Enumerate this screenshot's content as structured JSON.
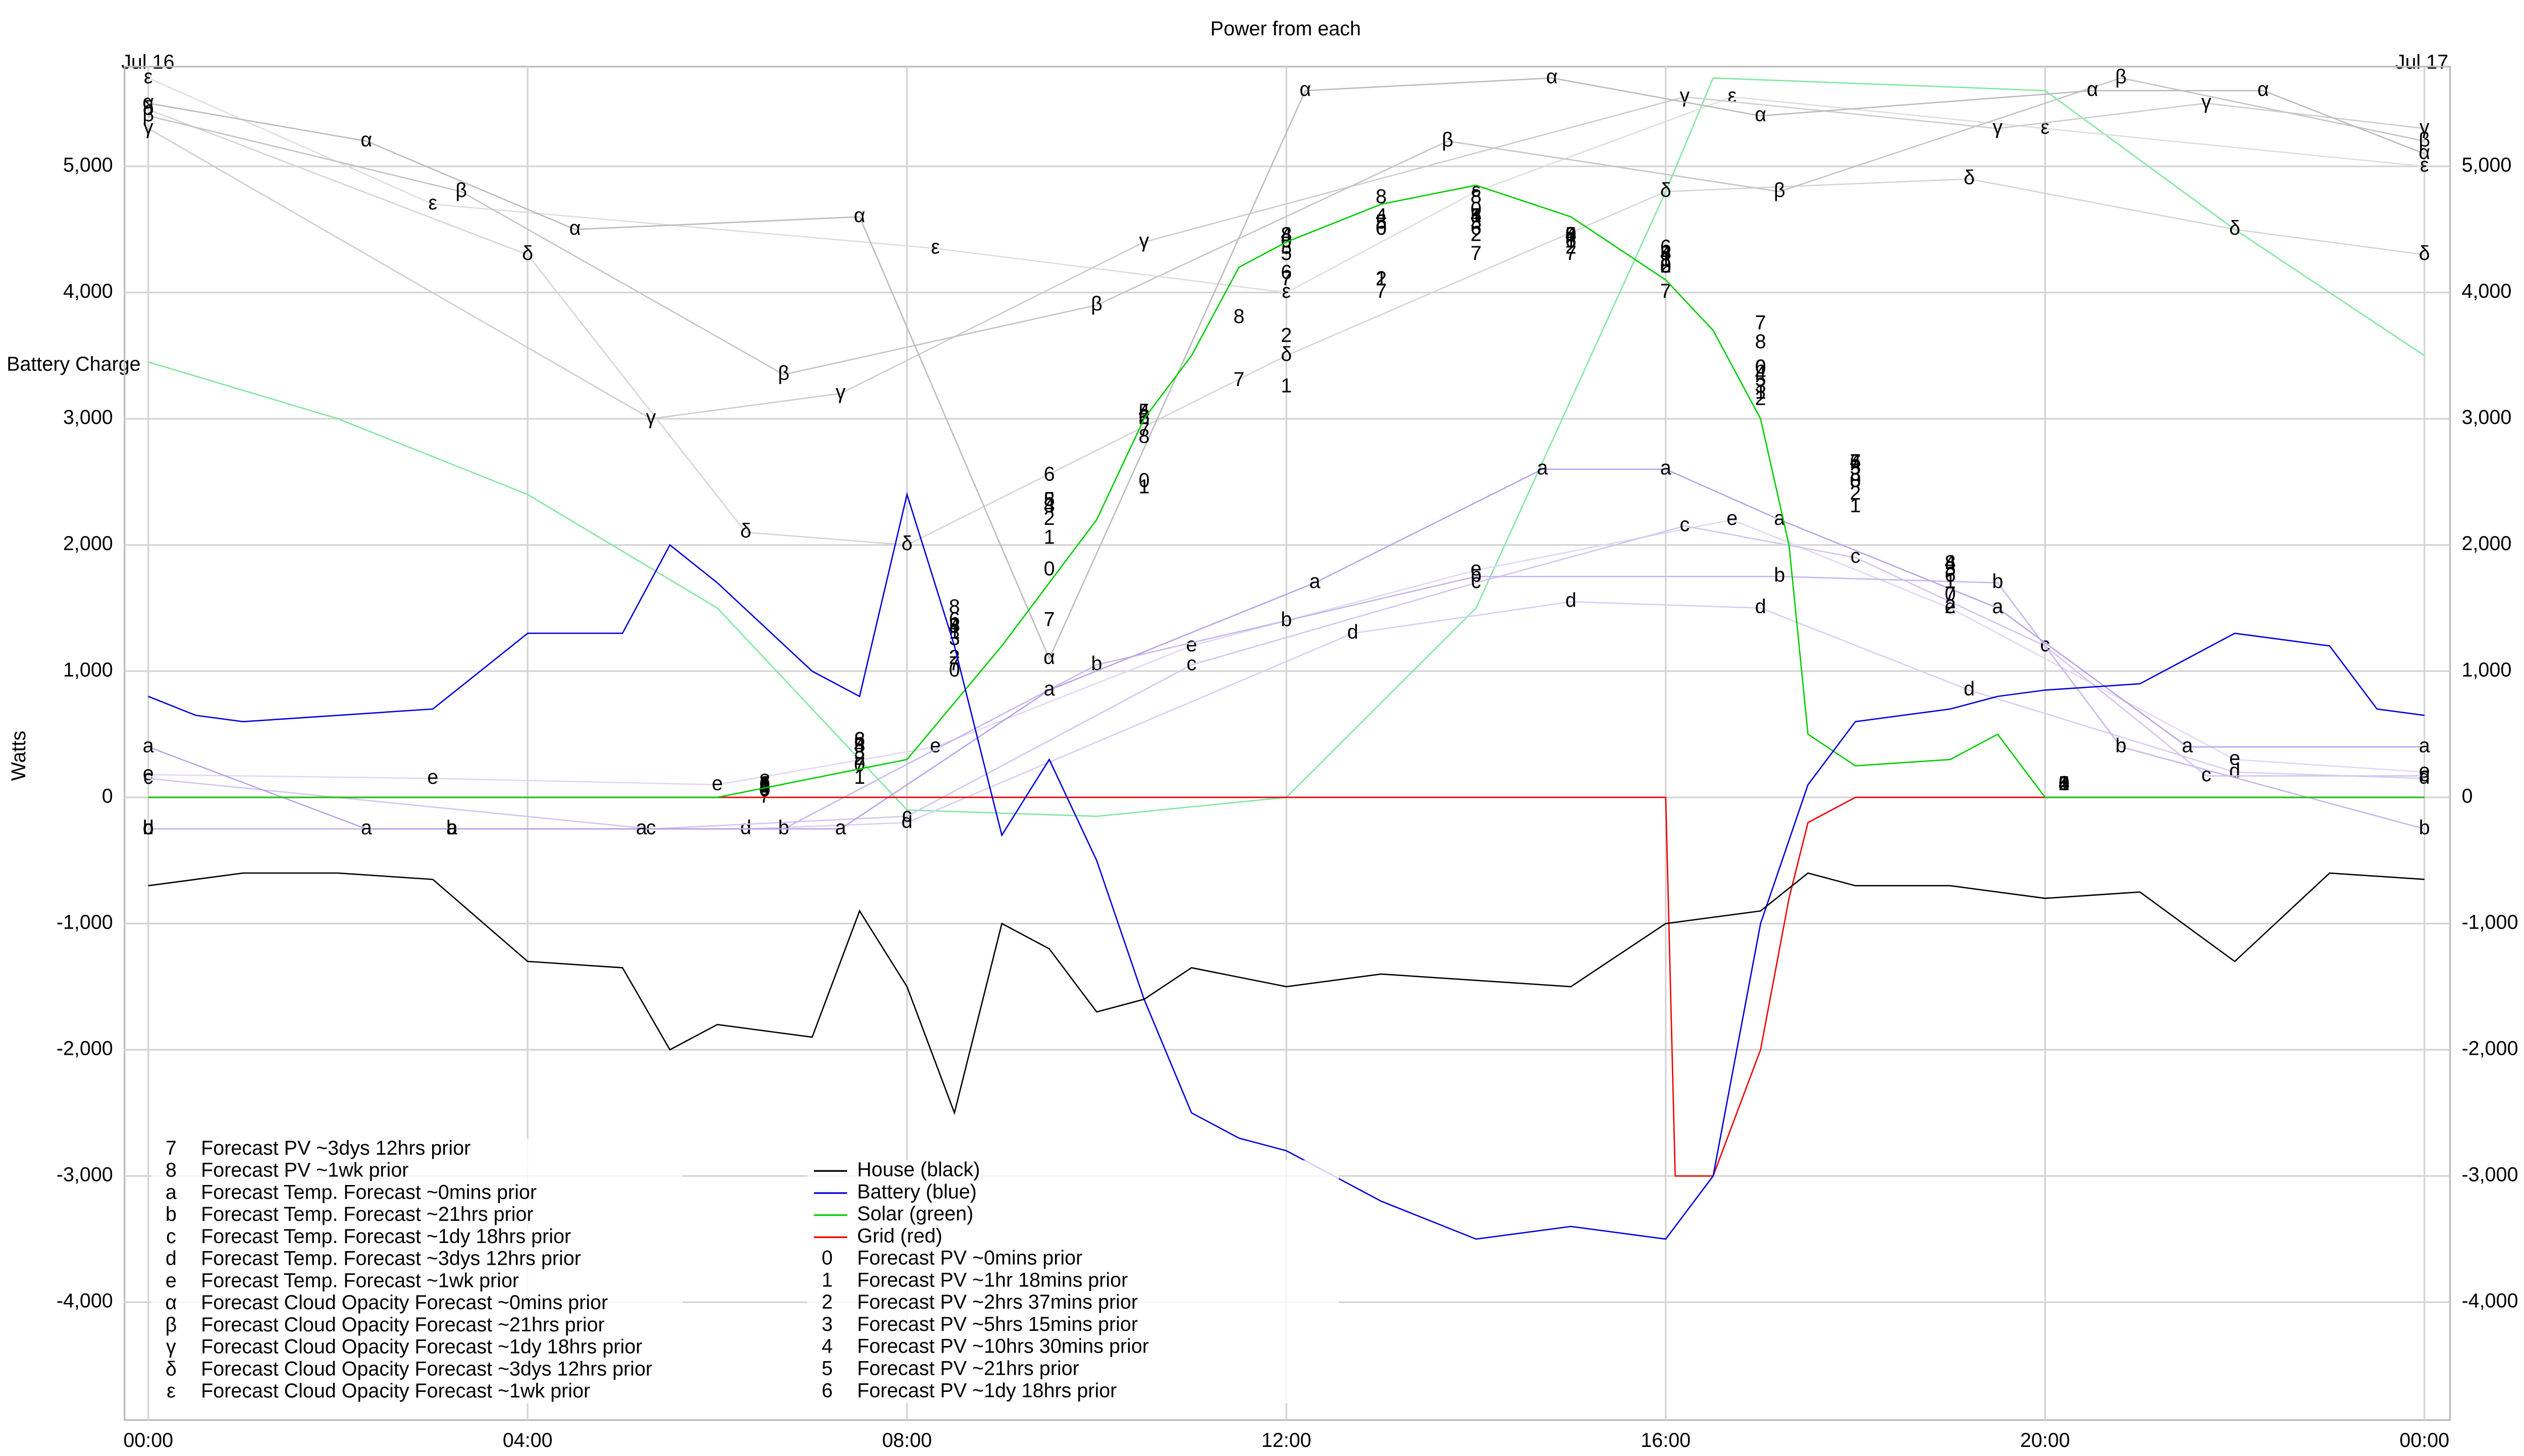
{
  "chart_data": {
    "type": "line",
    "title": "Power from each",
    "y_label": "Watts",
    "annotations": [
      "Jul 16",
      "Jul 17"
    ],
    "xlim": [
      -0.25,
      24.27
    ],
    "ylim": [
      -4934,
      5790
    ],
    "grid": true,
    "xticks": [
      {
        "value": 0,
        "label": "00:00"
      },
      {
        "value": 4,
        "label": "04:00"
      },
      {
        "value": 8,
        "label": "08:00"
      },
      {
        "value": 12,
        "label": "12:00"
      },
      {
        "value": 16,
        "label": "16:00"
      },
      {
        "value": 20,
        "label": "20:00"
      },
      {
        "value": 24,
        "label": "00:00"
      }
    ],
    "yticks": [
      {
        "value": -4000,
        "label": "-4,000"
      },
      {
        "value": -3000,
        "label": "-3,000"
      },
      {
        "value": -2000,
        "label": "-2,000"
      },
      {
        "value": -1000,
        "label": "-1,000"
      },
      0,
      {
        "value": 1000,
        "label": "1,000"
      },
      {
        "value": 2000,
        "label": "2,000"
      },
      {
        "value": 3000,
        "label": "3,000"
      },
      {
        "value": 4000,
        "label": "4,000"
      },
      {
        "value": 5000,
        "label": "5,000"
      }
    ],
    "battery_charge": {
      "name": "Battery Charge",
      "color": "#7fe7a0",
      "x": [
        0,
        2,
        4,
        6,
        8,
        10,
        12,
        14,
        16,
        16.5,
        20,
        22,
        24
      ],
      "values": [
        3450,
        3000,
        2400,
        1500,
        -100,
        -150,
        0,
        1500,
        4800,
        5700,
        5600,
        4500,
        3500
      ]
    },
    "series": [
      {
        "name": "House (black)",
        "color": "#000000",
        "marker": "",
        "x": [
          0,
          0.5,
          1,
          2,
          3,
          4,
          5,
          5.5,
          6,
          7,
          7.5,
          8,
          8.5,
          9,
          9.5,
          10,
          10.5,
          11,
          12,
          13,
          14,
          15,
          16,
          17,
          17.5,
          18,
          19,
          20,
          21,
          22,
          23,
          24
        ],
        "values": [
          -700,
          -650,
          -600,
          -600,
          -650,
          -1300,
          -1350,
          -2000,
          -1800,
          -1900,
          -900,
          -1500,
          -2500,
          -1000,
          -1200,
          -1700,
          -1600,
          -1350,
          -1500,
          -1400,
          -1450,
          -1500,
          -1000,
          -900,
          -600,
          -700,
          -700,
          -800,
          -750,
          -1300,
          -600,
          -650
        ]
      },
      {
        "name": "Battery (blue)",
        "color": "#0000dd",
        "marker": "",
        "x": [
          0,
          0.5,
          1,
          2,
          3,
          4,
          5,
          5.5,
          6,
          7,
          7.5,
          8,
          8.5,
          9,
          9.5,
          10,
          10.5,
          11,
          11.5,
          12,
          13,
          14,
          15,
          16,
          16.5,
          17,
          17.5,
          18,
          19,
          19.5,
          20,
          21,
          22,
          23,
          23.5,
          24
        ],
        "values": [
          800,
          650,
          600,
          650,
          700,
          1300,
          1300,
          2000,
          1700,
          1000,
          800,
          2400,
          1200,
          -300,
          300,
          -500,
          -1600,
          -2500,
          -2700,
          -2800,
          -3200,
          -3500,
          -3400,
          -3500,
          -3000,
          -1000,
          100,
          600,
          700,
          800,
          850,
          900,
          1300,
          1200,
          700,
          650
        ]
      },
      {
        "name": "Solar (green)",
        "color": "#00cc00",
        "marker": "",
        "x": [
          0,
          6,
          8,
          9,
          10,
          10.5,
          11,
          11.5,
          12,
          13,
          14,
          15,
          16,
          16.5,
          17,
          17.3,
          17.5,
          18,
          19,
          19.5,
          20,
          24
        ],
        "values": [
          0,
          0,
          300,
          1200,
          2200,
          3000,
          3500,
          4200,
          4400,
          4700,
          4850,
          4600,
          4100,
          3700,
          3000,
          2000,
          500,
          250,
          300,
          500,
          0,
          0
        ]
      },
      {
        "name": "Grid (red)",
        "color": "#ee0000",
        "marker": "",
        "x": [
          0,
          16,
          16.1,
          16.5,
          17,
          17.3,
          17.5,
          18,
          24
        ],
        "values": [
          0,
          0,
          -3000,
          -3000,
          -2000,
          -800,
          -200,
          0,
          0
        ]
      },
      {
        "name": "Forecast PV ~0mins prior",
        "color": "#000000",
        "marker": "0",
        "x": [
          6.5,
          7.5,
          8.5,
          9.5,
          10.5,
          12,
          13,
          14,
          15,
          16,
          17,
          18,
          19,
          20.2
        ],
        "values": [
          50,
          250,
          1000,
          1800,
          2500,
          4400,
          4500,
          4650,
          4450,
          4200,
          3400,
          2500,
          1600,
          100
        ]
      },
      {
        "name": "Forecast PV ~1hr 18mins prior",
        "color": "#000000",
        "marker": "1",
        "x": [
          6.5,
          7.5,
          8.5,
          9.5,
          10.5,
          12,
          13,
          14,
          15,
          16,
          17,
          18,
          19,
          20.2
        ],
        "values": [
          100,
          150,
          1300,
          2050,
          2450,
          3250,
          4100,
          4600,
          4400,
          4250,
          3200,
          2300,
          1700,
          100
        ]
      },
      {
        "name": "Forecast PV ~2hrs 37mins prior",
        "color": "#000000",
        "marker": "2",
        "x": [
          6.5,
          7.5,
          8.5,
          9.5,
          10.5,
          12,
          13,
          14,
          15,
          16,
          17,
          18,
          19,
          20.2
        ],
        "values": [
          80,
          300,
          1100,
          2200,
          3000,
          3650,
          4100,
          4450,
          4350,
          4200,
          3150,
          2400,
          1500,
          100
        ]
      },
      {
        "name": "Forecast PV ~5hrs 15mins prior",
        "color": "#000000",
        "marker": "3",
        "x": [
          6.5,
          7.5,
          8.5,
          9.5,
          10.5,
          12,
          13,
          14,
          15,
          16,
          17,
          18,
          19,
          20.2
        ],
        "values": [
          60,
          350,
          1250,
          2300,
          3000,
          4350,
          4550,
          4550,
          4450,
          4200,
          3250,
          2550,
          1800,
          100
        ]
      },
      {
        "name": "Forecast PV ~10hrs 30mins prior",
        "color": "#000000",
        "marker": "4",
        "x": [
          6.5,
          7.5,
          8.5,
          9.5,
          10.5,
          12,
          13,
          14,
          15,
          16,
          17,
          18,
          19,
          20.2
        ],
        "values": [
          70,
          400,
          1350,
          2300,
          3050,
          4450,
          4600,
          4600,
          4450,
          4300,
          3350,
          2650,
          1850,
          100
        ]
      },
      {
        "name": "Forecast PV ~21hrs prior",
        "color": "#000000",
        "marker": "5",
        "x": [
          6.5,
          7.5,
          8.5,
          9.5,
          10.5,
          12,
          13,
          14,
          15,
          16,
          17,
          18,
          19,
          20.2
        ],
        "values": [
          90,
          400,
          1350,
          2350,
          3050,
          4300,
          4550,
          4600,
          4450,
          4300,
          3300,
          2600,
          1800,
          100
        ]
      },
      {
        "name": "Forecast PV ~1dy 18hrs prior",
        "color": "#000000",
        "marker": "6",
        "x": [
          6.5,
          7.5,
          8.5,
          9.5,
          10.5,
          12,
          13,
          14,
          15,
          16,
          17,
          18,
          19,
          20.2
        ],
        "values": [
          100,
          450,
          1400,
          2550,
          3000,
          4150,
          4500,
          4500,
          4400,
          4350,
          3400,
          2650,
          1750,
          100
        ]
      },
      {
        "name": "Forecast PV ~3dys 12hrs prior",
        "color": "#000000",
        "marker": "7",
        "x": [
          6.5,
          7.5,
          8.5,
          9.5,
          10.5,
          11.5,
          12,
          13,
          14,
          15,
          16,
          17,
          18,
          19
        ],
        "values": [
          0,
          250,
          1050,
          1400,
          2900,
          3300,
          4100,
          4000,
          4300,
          4300,
          4000,
          3750,
          2650,
          1600
        ]
      },
      {
        "name": "Forecast PV ~1wk prior",
        "color": "#000000",
        "marker": "8",
        "x": [
          6.5,
          7.5,
          8.5,
          9.5,
          10.5,
          11.5,
          12,
          13,
          14,
          15,
          16,
          17,
          18,
          19
        ],
        "values": [
          120,
          450,
          1500,
          2350,
          2850,
          3800,
          4450,
          4750,
          4750,
          4450,
          4200,
          3600,
          2500,
          1850
        ]
      },
      {
        "name": "Forecast Temp. Forecast ~0mins prior",
        "color": "#b9a3e8",
        "marker": "a",
        "x": [
          0,
          2.3,
          3.2,
          5.2,
          7.3,
          9.5,
          12.3,
          14.7,
          16,
          17.2,
          19.5,
          21.5,
          24
        ],
        "values": [
          400,
          -250,
          -250,
          -250,
          -250,
          850,
          1700,
          2600,
          2600,
          2200,
          1500,
          400,
          400
        ]
      },
      {
        "name": "Forecast Temp. Forecast ~21hrs prior",
        "color": "#c7b6ee",
        "marker": "b",
        "x": [
          0,
          3.2,
          6.7,
          10,
          12,
          14,
          17.2,
          19.5,
          20.8,
          24
        ],
        "values": [
          -250,
          -250,
          -250,
          1050,
          1400,
          1750,
          1750,
          1700,
          400,
          -250
        ]
      },
      {
        "name": "Forecast Temp. Forecast ~1dy 18hrs prior",
        "color": "#d2c4f2",
        "marker": "c",
        "x": [
          0,
          5.3,
          8,
          11,
          14,
          16.2,
          18,
          20,
          21.7,
          24
        ],
        "values": [
          150,
          -250,
          -150,
          1050,
          1700,
          2150,
          1900,
          1200,
          170,
          170
        ]
      },
      {
        "name": "Forecast Temp. Forecast ~3dys 12hrs prior",
        "color": "#d9ccf5",
        "marker": "d",
        "x": [
          0,
          6.3,
          8,
          12.7,
          15,
          17,
          19.2,
          22,
          24
        ],
        "values": [
          -250,
          -250,
          -200,
          1300,
          1550,
          1500,
          850,
          200,
          150
        ]
      },
      {
        "name": "Forecast Temp. Forecast ~1wk prior",
        "color": "#e0d6f7",
        "marker": "e",
        "x": [
          0,
          3,
          6,
          8.3,
          11,
          14,
          16.7,
          19,
          22,
          24
        ],
        "values": [
          180,
          150,
          100,
          400,
          1200,
          1800,
          2200,
          1500,
          300,
          200
        ]
      },
      {
        "name": "Forecast Cloud Opacity Forecast ~0mins prior",
        "color": "#bbbbbb",
        "marker": "α",
        "x": [
          0,
          2.3,
          4.5,
          7.5,
          9.5,
          12.2,
          14.8,
          17,
          20.5,
          22.3,
          24
        ],
        "values": [
          5500,
          5200,
          4500,
          4600,
          1100,
          5600,
          5700,
          5400,
          5600,
          5600,
          5100
        ]
      },
      {
        "name": "Forecast Cloud Opacity Forecast ~21hrs prior",
        "color": "#c4c4c4",
        "marker": "β",
        "x": [
          0,
          3.3,
          6.7,
          10,
          13.7,
          17.2,
          20.8,
          24
        ],
        "values": [
          5400,
          4800,
          3350,
          3900,
          5200,
          4800,
          5700,
          5200
        ]
      },
      {
        "name": "Forecast Cloud Opacity Forecast ~1dy 18hrs prior",
        "color": "#cccccc",
        "marker": "γ",
        "x": [
          0,
          5.3,
          7.3,
          10.5,
          16.2,
          19.5,
          21.7,
          24
        ],
        "values": [
          5300,
          3000,
          3200,
          4400,
          5550,
          5300,
          5500,
          5300
        ]
      },
      {
        "name": "Forecast Cloud Opacity Forecast ~3dys 12hrs prior",
        "color": "#d4d4d4",
        "marker": "δ",
        "x": [
          0,
          4,
          6.3,
          8,
          12,
          16,
          19.2,
          22,
          24
        ],
        "values": [
          5450,
          4300,
          2100,
          2000,
          3500,
          4800,
          4900,
          4500,
          4300
        ]
      },
      {
        "name": "Forecast Cloud Opacity Forecast ~1wk prior",
        "color": "#dddddd",
        "marker": "ε",
        "x": [
          0,
          3,
          8.3,
          12,
          14,
          16.7,
          20,
          24
        ],
        "values": [
          5700,
          4700,
          4350,
          4000,
          4800,
          5550,
          5300,
          5000
        ]
      }
    ]
  }
}
